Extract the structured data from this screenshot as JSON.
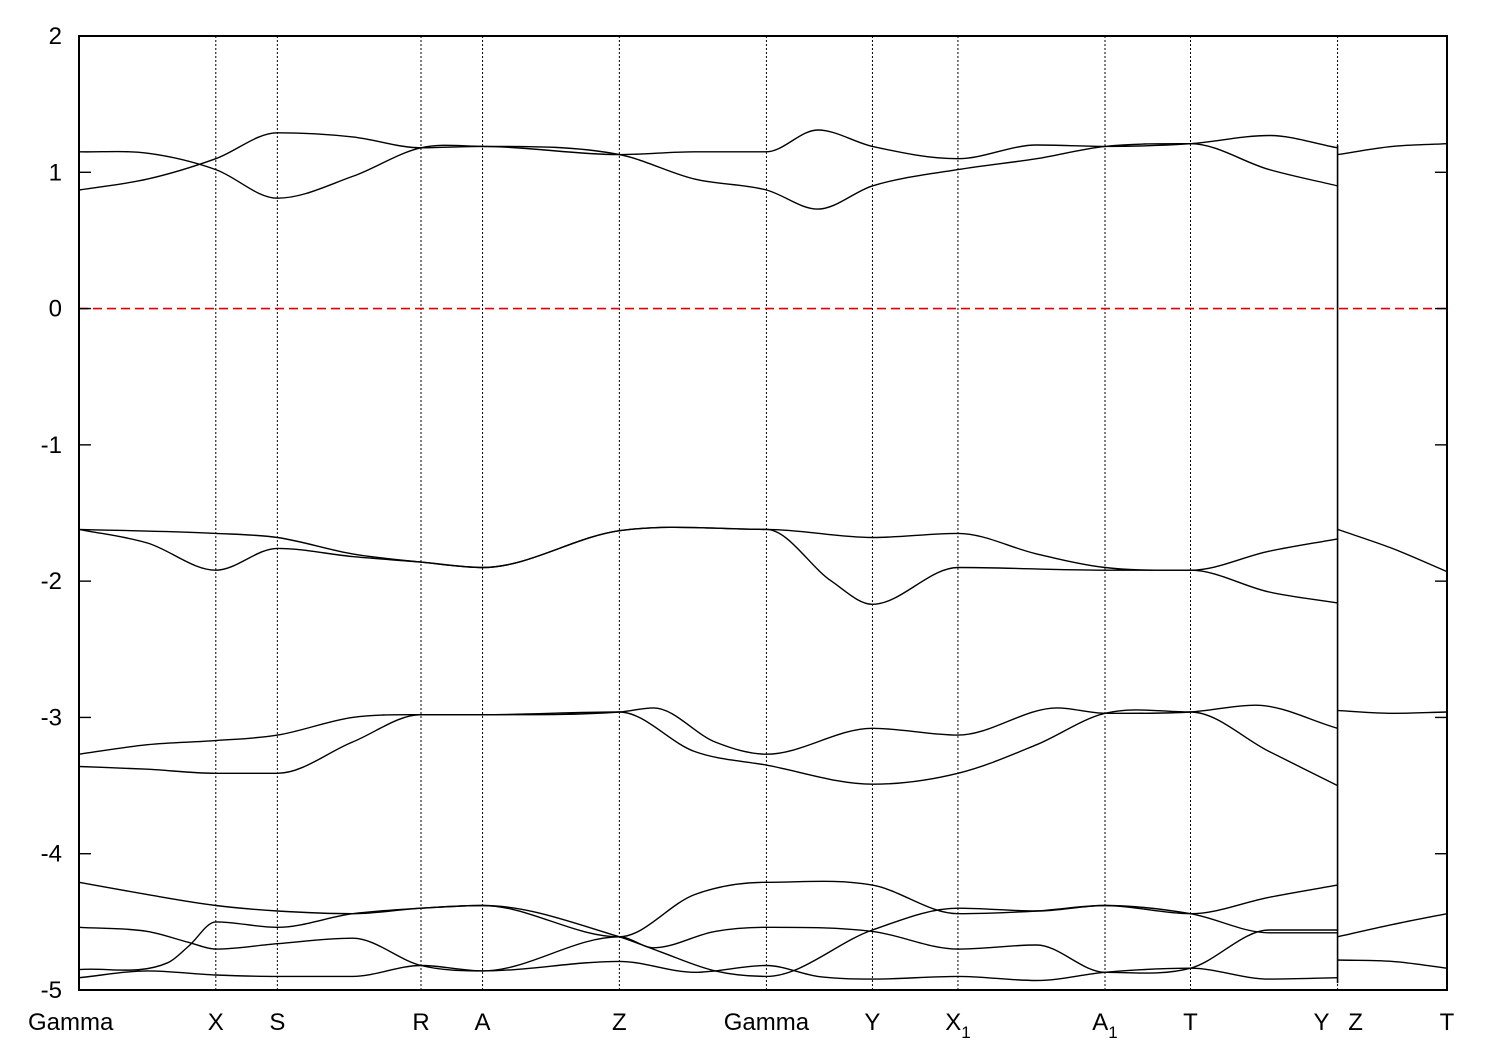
{
  "chart_data": {
    "type": "line",
    "title": "",
    "xlabel": "",
    "ylabel": "",
    "ylim": [
      -5,
      2
    ],
    "yticks": [
      "2",
      "1",
      "0",
      "-1",
      "-2",
      "-3",
      "-4",
      "-5"
    ],
    "xlim": [
      0,
      20
    ],
    "grid": false,
    "legend": "none",
    "kpoints": [
      {
        "label": "Gamma",
        "sub": "",
        "x": 0
      },
      {
        "label": "X",
        "sub": "",
        "x": 2
      },
      {
        "label": "S",
        "sub": "",
        "x": 2.9
      },
      {
        "label": "R",
        "sub": "",
        "x": 5
      },
      {
        "label": "A",
        "sub": "",
        "x": 5.9
      },
      {
        "label": "Z",
        "sub": "",
        "x": 7.9
      },
      {
        "label": "Gamma",
        "sub": "",
        "x": 10.05
      },
      {
        "label": "Y",
        "sub": "",
        "x": 11.6
      },
      {
        "label": "X",
        "sub": "1",
        "x": 12.85
      },
      {
        "label": "A",
        "sub": "1",
        "x": 15
      },
      {
        "label": "T",
        "sub": "",
        "x": 16.25
      },
      {
        "label": "Y",
        "sub": "",
        "x": 18.4
      },
      {
        "label": "Z",
        "sub": "",
        "x": 18.4
      },
      {
        "label": "T",
        "sub": "",
        "x": 20
      }
    ],
    "fermi_level": 0,
    "colors": {
      "bands": "#000000",
      "fermi": "#e00000"
    },
    "series": [
      {
        "points": [
          [
            0,
            1.15
          ],
          [
            1,
            1.14
          ],
          [
            2,
            1.02
          ],
          [
            2.9,
            0.81
          ],
          [
            4,
            0.97
          ],
          [
            5,
            1.18
          ],
          [
            5.9,
            1.19
          ],
          [
            7.9,
            1.13
          ],
          [
            9,
            0.95
          ],
          [
            10.05,
            0.87
          ],
          [
            10.8,
            0.73
          ],
          [
            11.6,
            0.9
          ],
          [
            12.85,
            1.02
          ],
          [
            14,
            1.1
          ],
          [
            15,
            1.19
          ],
          [
            16.25,
            1.21
          ],
          [
            17.4,
            1.02
          ],
          [
            18.4,
            0.9
          ]
        ]
      },
      {
        "points": [
          [
            0,
            0.87
          ],
          [
            1,
            0.95
          ],
          [
            2,
            1.1
          ],
          [
            2.9,
            1.29
          ],
          [
            4,
            1.26
          ],
          [
            5,
            1.18
          ],
          [
            5.9,
            1.19
          ],
          [
            7.9,
            1.13
          ],
          [
            9,
            1.15
          ],
          [
            10.05,
            1.15
          ],
          [
            10.8,
            1.31
          ],
          [
            11.6,
            1.19
          ],
          [
            12.85,
            1.1
          ],
          [
            14,
            1.2
          ],
          [
            15,
            1.19
          ],
          [
            16.25,
            1.21
          ],
          [
            17.4,
            1.27
          ],
          [
            18.4,
            1.18
          ]
        ]
      },
      {
        "points": [
          [
            18.4,
            1.13
          ],
          [
            19.2,
            1.19
          ],
          [
            20,
            1.21
          ]
        ]
      },
      {
        "points": [
          [
            0,
            -1.62
          ],
          [
            1,
            -1.72
          ],
          [
            2,
            -1.92
          ],
          [
            2.9,
            -1.76
          ],
          [
            4,
            -1.82
          ],
          [
            5,
            -1.86
          ],
          [
            5.9,
            -1.9
          ],
          [
            7.9,
            -1.63
          ],
          [
            10.05,
            -1.62
          ],
          [
            11,
            -2.0
          ],
          [
            11.6,
            -2.17
          ],
          [
            12.85,
            -1.9
          ],
          [
            15,
            -1.92
          ],
          [
            16.25,
            -1.92
          ],
          [
            17.4,
            -2.08
          ],
          [
            18.4,
            -2.16
          ]
        ]
      },
      {
        "points": [
          [
            0,
            -1.62
          ],
          [
            2,
            -1.65
          ],
          [
            2.9,
            -1.68
          ],
          [
            4,
            -1.8
          ],
          [
            5,
            -1.86
          ],
          [
            5.9,
            -1.9
          ],
          [
            7.9,
            -1.63
          ],
          [
            10.05,
            -1.62
          ],
          [
            11.6,
            -1.68
          ],
          [
            12.85,
            -1.65
          ],
          [
            14,
            -1.8
          ],
          [
            15,
            -1.9
          ],
          [
            16.25,
            -1.92
          ],
          [
            17.4,
            -1.78
          ],
          [
            18.4,
            -1.69
          ]
        ]
      },
      {
        "points": [
          [
            18.4,
            -1.62
          ],
          [
            19.2,
            -1.76
          ],
          [
            20,
            -1.93
          ]
        ]
      },
      {
        "points": [
          [
            0,
            -3.27
          ],
          [
            1,
            -3.2
          ],
          [
            2,
            -3.17
          ],
          [
            2.9,
            -3.13
          ],
          [
            4,
            -3.0
          ],
          [
            5,
            -2.98
          ],
          [
            5.9,
            -2.98
          ],
          [
            7.9,
            -2.96
          ],
          [
            9,
            -3.25
          ],
          [
            10.05,
            -3.35
          ],
          [
            11.6,
            -3.49
          ],
          [
            12.85,
            -3.41
          ],
          [
            14,
            -3.2
          ],
          [
            15,
            -2.97
          ],
          [
            16.25,
            -2.96
          ],
          [
            17.4,
            -3.25
          ],
          [
            18.4,
            -3.5
          ]
        ]
      },
      {
        "points": [
          [
            0,
            -3.36
          ],
          [
            1,
            -3.38
          ],
          [
            2,
            -3.41
          ],
          [
            2.9,
            -3.41
          ],
          [
            4,
            -3.18
          ],
          [
            5,
            -2.98
          ],
          [
            5.9,
            -2.98
          ],
          [
            7.9,
            -2.96
          ],
          [
            8.4,
            -2.93
          ],
          [
            9.3,
            -3.18
          ],
          [
            10.05,
            -3.27
          ],
          [
            11.6,
            -3.08
          ],
          [
            12.85,
            -3.13
          ],
          [
            14.3,
            -2.93
          ],
          [
            15,
            -2.97
          ],
          [
            16.25,
            -2.96
          ],
          [
            17.2,
            -2.91
          ],
          [
            18.4,
            -3.08
          ]
        ]
      },
      {
        "points": [
          [
            18.4,
            -2.95
          ],
          [
            19.2,
            -2.97
          ],
          [
            20,
            -2.96
          ]
        ]
      },
      {
        "points": [
          [
            0,
            -4.21
          ],
          [
            1,
            -4.3
          ],
          [
            2,
            -4.38
          ],
          [
            2.9,
            -4.42
          ],
          [
            4,
            -4.44
          ],
          [
            5,
            -4.4
          ],
          [
            5.9,
            -4.38
          ],
          [
            7.9,
            -4.61
          ],
          [
            9,
            -4.3
          ],
          [
            10.05,
            -4.21
          ],
          [
            11.6,
            -4.23
          ],
          [
            12.85,
            -4.44
          ],
          [
            14,
            -4.42
          ],
          [
            15,
            -4.38
          ],
          [
            16.25,
            -4.44
          ],
          [
            17.4,
            -4.32
          ],
          [
            18.4,
            -4.23
          ]
        ]
      },
      {
        "points": [
          [
            0,
            -4.54
          ],
          [
            1,
            -4.57
          ],
          [
            1.6,
            -4.65
          ],
          [
            2,
            -4.7
          ],
          [
            2.9,
            -4.66
          ],
          [
            4,
            -4.62
          ],
          [
            5,
            -4.82
          ],
          [
            5.9,
            -4.86
          ],
          [
            7.9,
            -4.61
          ],
          [
            8.4,
            -4.69
          ],
          [
            9.3,
            -4.57
          ],
          [
            10.05,
            -4.54
          ],
          [
            11.6,
            -4.57
          ],
          [
            12.85,
            -4.7
          ],
          [
            14,
            -4.67
          ],
          [
            15,
            -4.87
          ],
          [
            16.25,
            -4.84
          ],
          [
            17.4,
            -4.56
          ],
          [
            18.4,
            -4.56
          ]
        ]
      },
      {
        "points": [
          [
            0,
            -4.85
          ],
          [
            1.3,
            -4.8
          ],
          [
            1.6,
            -4.68
          ],
          [
            2,
            -4.5
          ],
          [
            2.9,
            -4.54
          ],
          [
            4,
            -4.44
          ],
          [
            5,
            -4.4
          ],
          [
            5.9,
            -4.38
          ],
          [
            7.9,
            -4.61
          ],
          [
            8.5,
            -4.72
          ],
          [
            9.3,
            -4.86
          ],
          [
            10.05,
            -4.9
          ],
          [
            11.6,
            -4.56
          ],
          [
            12.85,
            -4.4
          ],
          [
            14,
            -4.42
          ],
          [
            15,
            -4.38
          ],
          [
            16.25,
            -4.44
          ],
          [
            17.4,
            -4.58
          ],
          [
            18.4,
            -4.58
          ]
        ]
      },
      {
        "points": [
          [
            0,
            -4.91
          ],
          [
            1,
            -4.86
          ],
          [
            2,
            -4.89
          ],
          [
            2.9,
            -4.9
          ],
          [
            4,
            -4.9
          ],
          [
            5,
            -4.82
          ],
          [
            5.9,
            -4.86
          ],
          [
            7.9,
            -4.79
          ],
          [
            9,
            -4.87
          ],
          [
            10.05,
            -4.82
          ],
          [
            10.8,
            -4.9
          ],
          [
            11.6,
            -4.92
          ],
          [
            12.85,
            -4.9
          ],
          [
            14,
            -4.93
          ],
          [
            15,
            -4.87
          ],
          [
            16.25,
            -4.84
          ],
          [
            17.4,
            -4.92
          ],
          [
            18.4,
            -4.91
          ]
        ]
      },
      {
        "points": [
          [
            18.4,
            -4.61
          ],
          [
            19.2,
            -4.52
          ],
          [
            20,
            -4.44
          ]
        ]
      },
      {
        "points": [
          [
            18.4,
            -4.78
          ],
          [
            19.2,
            -4.79
          ],
          [
            20,
            -4.84
          ]
        ]
      }
    ]
  }
}
